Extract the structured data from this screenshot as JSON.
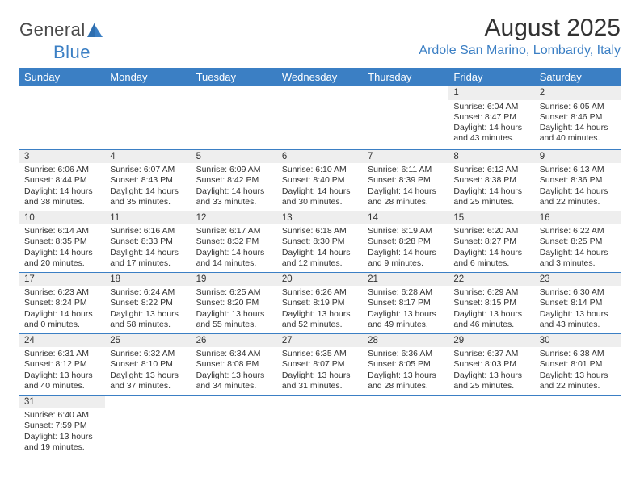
{
  "logo": {
    "text1": "General",
    "text2": "Blue"
  },
  "title": "August 2025",
  "location": "Ardole San Marino, Lombardy, Italy",
  "colors": {
    "header_bg": "#3b7fc4",
    "header_fg": "#ffffff",
    "daynum_bg": "#eeeeee",
    "rule": "#3b7fc4",
    "logo_blue": "#3b7fc4"
  },
  "weekdays": [
    "Sunday",
    "Monday",
    "Tuesday",
    "Wednesday",
    "Thursday",
    "Friday",
    "Saturday"
  ],
  "weeks": [
    [
      null,
      null,
      null,
      null,
      null,
      {
        "n": "1",
        "sr": "6:04 AM",
        "ss": "8:47 PM",
        "dl": "14 hours and 43 minutes."
      },
      {
        "n": "2",
        "sr": "6:05 AM",
        "ss": "8:46 PM",
        "dl": "14 hours and 40 minutes."
      }
    ],
    [
      {
        "n": "3",
        "sr": "6:06 AM",
        "ss": "8:44 PM",
        "dl": "14 hours and 38 minutes."
      },
      {
        "n": "4",
        "sr": "6:07 AM",
        "ss": "8:43 PM",
        "dl": "14 hours and 35 minutes."
      },
      {
        "n": "5",
        "sr": "6:09 AM",
        "ss": "8:42 PM",
        "dl": "14 hours and 33 minutes."
      },
      {
        "n": "6",
        "sr": "6:10 AM",
        "ss": "8:40 PM",
        "dl": "14 hours and 30 minutes."
      },
      {
        "n": "7",
        "sr": "6:11 AM",
        "ss": "8:39 PM",
        "dl": "14 hours and 28 minutes."
      },
      {
        "n": "8",
        "sr": "6:12 AM",
        "ss": "8:38 PM",
        "dl": "14 hours and 25 minutes."
      },
      {
        "n": "9",
        "sr": "6:13 AM",
        "ss": "8:36 PM",
        "dl": "14 hours and 22 minutes."
      }
    ],
    [
      {
        "n": "10",
        "sr": "6:14 AM",
        "ss": "8:35 PM",
        "dl": "14 hours and 20 minutes."
      },
      {
        "n": "11",
        "sr": "6:16 AM",
        "ss": "8:33 PM",
        "dl": "14 hours and 17 minutes."
      },
      {
        "n": "12",
        "sr": "6:17 AM",
        "ss": "8:32 PM",
        "dl": "14 hours and 14 minutes."
      },
      {
        "n": "13",
        "sr": "6:18 AM",
        "ss": "8:30 PM",
        "dl": "14 hours and 12 minutes."
      },
      {
        "n": "14",
        "sr": "6:19 AM",
        "ss": "8:28 PM",
        "dl": "14 hours and 9 minutes."
      },
      {
        "n": "15",
        "sr": "6:20 AM",
        "ss": "8:27 PM",
        "dl": "14 hours and 6 minutes."
      },
      {
        "n": "16",
        "sr": "6:22 AM",
        "ss": "8:25 PM",
        "dl": "14 hours and 3 minutes."
      }
    ],
    [
      {
        "n": "17",
        "sr": "6:23 AM",
        "ss": "8:24 PM",
        "dl": "14 hours and 0 minutes."
      },
      {
        "n": "18",
        "sr": "6:24 AM",
        "ss": "8:22 PM",
        "dl": "13 hours and 58 minutes."
      },
      {
        "n": "19",
        "sr": "6:25 AM",
        "ss": "8:20 PM",
        "dl": "13 hours and 55 minutes."
      },
      {
        "n": "20",
        "sr": "6:26 AM",
        "ss": "8:19 PM",
        "dl": "13 hours and 52 minutes."
      },
      {
        "n": "21",
        "sr": "6:28 AM",
        "ss": "8:17 PM",
        "dl": "13 hours and 49 minutes."
      },
      {
        "n": "22",
        "sr": "6:29 AM",
        "ss": "8:15 PM",
        "dl": "13 hours and 46 minutes."
      },
      {
        "n": "23",
        "sr": "6:30 AM",
        "ss": "8:14 PM",
        "dl": "13 hours and 43 minutes."
      }
    ],
    [
      {
        "n": "24",
        "sr": "6:31 AM",
        "ss": "8:12 PM",
        "dl": "13 hours and 40 minutes."
      },
      {
        "n": "25",
        "sr": "6:32 AM",
        "ss": "8:10 PM",
        "dl": "13 hours and 37 minutes."
      },
      {
        "n": "26",
        "sr": "6:34 AM",
        "ss": "8:08 PM",
        "dl": "13 hours and 34 minutes."
      },
      {
        "n": "27",
        "sr": "6:35 AM",
        "ss": "8:07 PM",
        "dl": "13 hours and 31 minutes."
      },
      {
        "n": "28",
        "sr": "6:36 AM",
        "ss": "8:05 PM",
        "dl": "13 hours and 28 minutes."
      },
      {
        "n": "29",
        "sr": "6:37 AM",
        "ss": "8:03 PM",
        "dl": "13 hours and 25 minutes."
      },
      {
        "n": "30",
        "sr": "6:38 AM",
        "ss": "8:01 PM",
        "dl": "13 hours and 22 minutes."
      }
    ],
    [
      {
        "n": "31",
        "sr": "6:40 AM",
        "ss": "7:59 PM",
        "dl": "13 hours and 19 minutes."
      },
      null,
      null,
      null,
      null,
      null,
      null
    ]
  ],
  "labels": {
    "sunrise": "Sunrise:",
    "sunset": "Sunset:",
    "daylight": "Daylight:"
  }
}
